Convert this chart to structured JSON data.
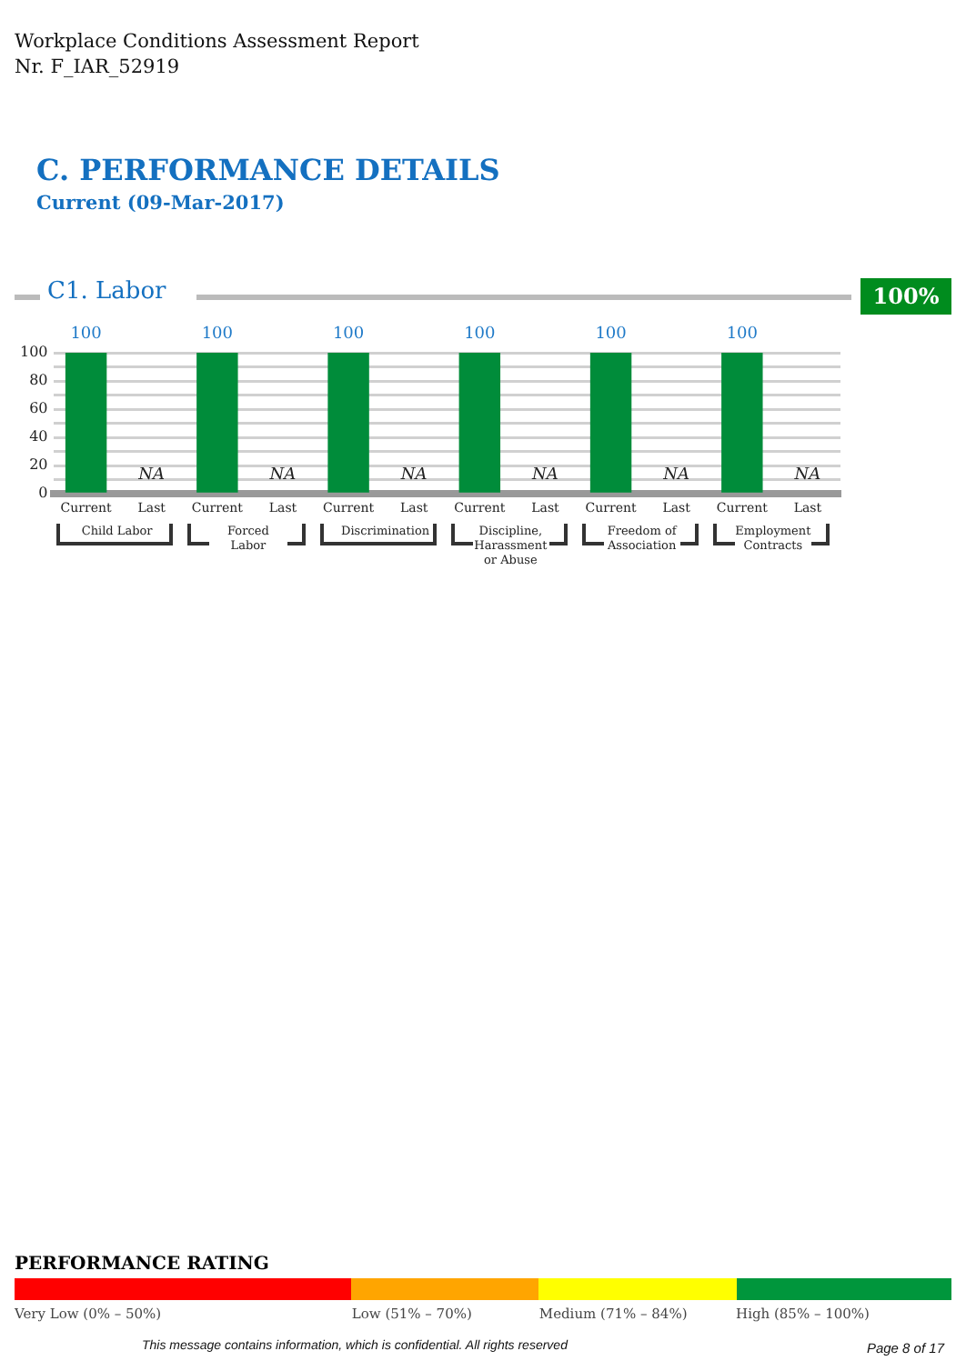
{
  "chart_data": {
    "type": "bar",
    "title": "C. PERFORMANCE DETAILS",
    "subtitle": "Current (09-Mar-2017)",
    "categories": [
      "Current",
      "Last",
      "Current",
      "Last",
      "Current",
      "Last",
      "Current",
      "Last",
      "Current",
      "Last",
      "Current",
      "Last"
    ],
    "values": [
      100,
      null,
      100,
      null,
      100,
      null,
      100,
      null,
      100,
      null,
      100,
      null
    ],
    "value_labels": [
      "100",
      "NA",
      "100",
      "NA",
      "100",
      "NA",
      "100",
      "NA",
      "100",
      "NA",
      "100",
      "NA"
    ],
    "color": "#008c3a",
    "ylim": [
      0,
      100
    ],
    "yticks": [
      0,
      {
        "value": 10,
        "label": null
      },
      20,
      {
        "value": 30,
        "label": null
      },
      40,
      {
        "value": 50,
        "label": null
      },
      60,
      {
        "value": 70,
        "label": null
      },
      80,
      {
        "value": 90,
        "label": null
      },
      100
    ],
    "grid": "y",
    "annotations": [
      "Workplace Conditions Assessment Report",
      "Nr. F_IAR_52919",
      "C1. Labor",
      "100%",
      "Child Labor",
      "Forced Labor",
      "Discrimination",
      "Discipline, Harassment or Abuse",
      "Freedom of Association",
      "Employment Contracts",
      "PERFORMANCE RATING",
      "Very Low (0% – 50%)",
      "Low (51% – 70%)",
      "Medium (71% – 84%)",
      "High (85% – 100%)",
      "This message contains information, which is confidential. All rights reserved",
      "Page 8 of 17"
    ]
  }
}
